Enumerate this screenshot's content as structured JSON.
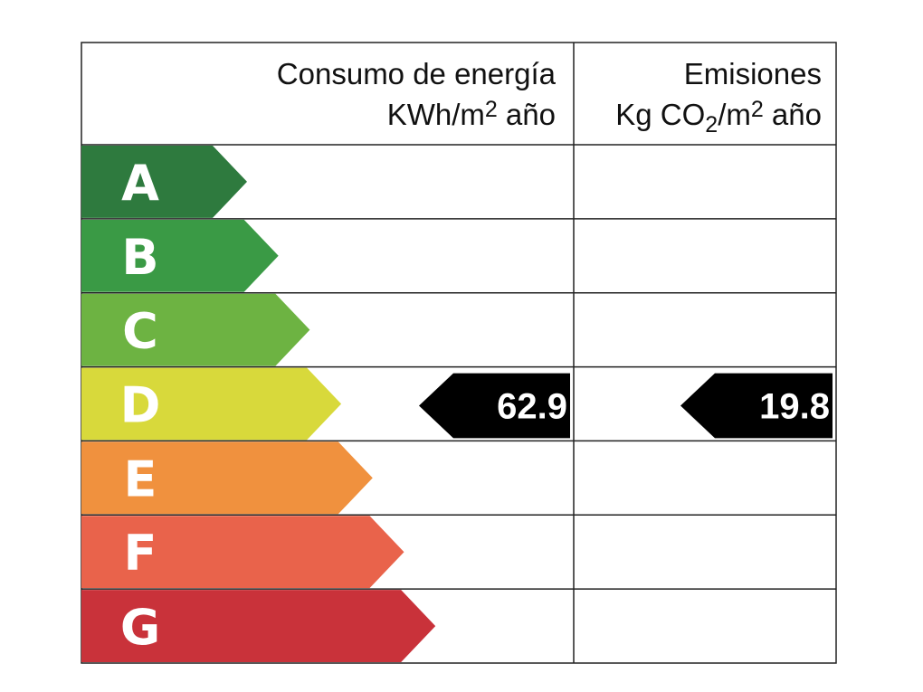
{
  "header": {
    "energy_title": "Consumo de energía",
    "energy_unit": [
      {
        "text": "KWh/m"
      },
      {
        "text": "2",
        "position": "super"
      },
      {
        "text": " año"
      }
    ],
    "emissions_title": "Emisiones",
    "emissions_unit": [
      {
        "text": "Kg CO"
      },
      {
        "text": "2",
        "position": "sub"
      },
      {
        "text": "/m"
      },
      {
        "text": "2",
        "position": "super"
      },
      {
        "text": " año"
      }
    ]
  },
  "rows": [
    {
      "label": "A",
      "color": "#2e7a3e"
    },
    {
      "label": "B",
      "color": "#3a9a45"
    },
    {
      "label": "C",
      "color": "#6db342"
    },
    {
      "label": "D",
      "color": "#d8d93b"
    },
    {
      "label": "E",
      "color": "#f0913e"
    },
    {
      "label": "F",
      "color": "#e9634b"
    },
    {
      "label": "G",
      "color": "#c9323a"
    }
  ],
  "energy": {
    "value": 62.9,
    "class": "D"
  },
  "emissions": {
    "value": 19.8,
    "class": "D"
  }
}
